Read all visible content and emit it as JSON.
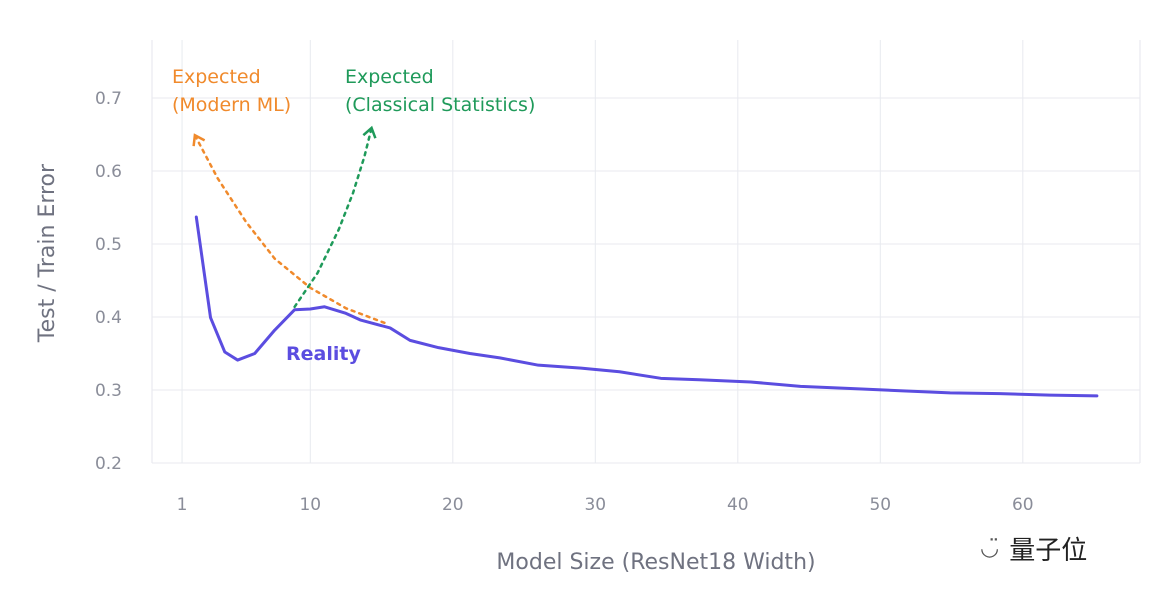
{
  "chart_data": {
    "type": "line",
    "title": "",
    "xlabel": "Model Size (ResNet18 Width)",
    "ylabel": "Test / Train Error",
    "xlim": [
      -1,
      69
    ],
    "ylim": [
      0.2,
      0.75
    ],
    "xticks": [
      1,
      10,
      20,
      30,
      40,
      50,
      60
    ],
    "yticks": [
      0.2,
      0.3,
      0.4,
      0.5,
      0.6,
      0.7
    ],
    "grid": true,
    "series": [
      {
        "name": "Reality",
        "color": "#5b4de0",
        "style": "solid",
        "x": [
          2.0,
          3.0,
          4.0,
          4.9,
          6.1,
          7.5,
          8.9,
          10,
          11,
          12.5,
          13.5,
          15.6,
          17,
          19,
          21.2,
          23.3,
          26,
          29,
          31.7,
          34.6,
          37.3,
          40.9,
          44.4,
          47.9,
          51.4,
          54.9,
          58.4,
          61.9,
          65.2
        ],
        "y": [
          0.537,
          0.399,
          0.352,
          0.341,
          0.35,
          0.382,
          0.41,
          0.411,
          0.414,
          0.405,
          0.396,
          0.385,
          0.368,
          0.358,
          0.35,
          0.344,
          0.334,
          0.33,
          0.325,
          0.316,
          0.314,
          0.311,
          0.305,
          0.302,
          0.299,
          0.296,
          0.295,
          0.293,
          0.292
        ]
      },
      {
        "name": "Expected (Modern ML)",
        "color": "#f08a2c",
        "style": "dotted",
        "x": [
          15.2,
          12.5,
          10,
          7.5,
          5.5,
          3.5,
          1.9
        ],
        "y": [
          0.392,
          0.412,
          0.44,
          0.48,
          0.53,
          0.59,
          0.649
        ]
      },
      {
        "name": "Expected (Classical Statistics)",
        "color": "#1f9a5a",
        "style": "dotted",
        "x": [
          8.9,
          10.5,
          12,
          13,
          13.8,
          14.3
        ],
        "y": [
          0.414,
          0.46,
          0.52,
          0.57,
          0.62,
          0.659
        ]
      }
    ],
    "annotations": {
      "modern_l1": "Expected",
      "modern_l2": "(Modern ML)",
      "classical_l1": "Expected",
      "classical_l2": "(Classical Statistics)",
      "reality": "Reality"
    }
  },
  "watermark": {
    "text": "量子位"
  }
}
